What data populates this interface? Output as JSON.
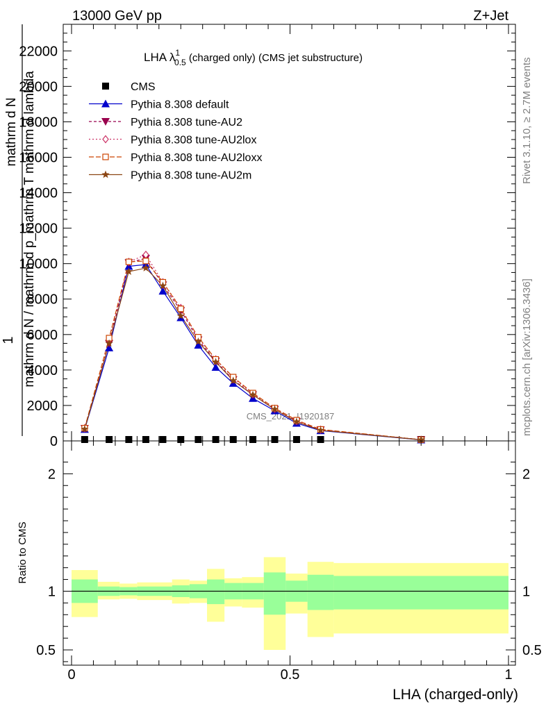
{
  "header": {
    "energy_label": "13000 GeV pp",
    "process_label": "Z+Jet"
  },
  "side_labels": {
    "rivet": "Rivet 3.1.10, ≥ 2.7M events",
    "mcplots": "mcplots.cern.ch [arXiv:1306.3436]"
  },
  "watermark": "CMS_2021_I1920187",
  "chart_data": [
    {
      "type": "line",
      "panel": "main",
      "title": {
        "prefix": "LHA λ",
        "sup": "1",
        "sub": "0.5",
        "suffix": " (charged only) (CMS jet substructure)"
      },
      "ylabel": {
        "lead": "1",
        "numerator": "mathrm d N",
        "denominator": "mathrm d N / mathrm d p_mathrm T mathrm d lambda"
      },
      "xlim": [
        0,
        1
      ],
      "ylim": [
        0,
        23500
      ],
      "yticks": [
        {
          "v": 0,
          "label": "0"
        },
        {
          "v": 2000,
          "label": "2000"
        },
        {
          "v": 4000,
          "label": "4000"
        },
        {
          "v": 6000,
          "label": "6000"
        },
        {
          "v": 8000,
          "label": "8000"
        },
        {
          "v": 10000,
          "label": "10000"
        },
        {
          "v": 12000,
          "label": "12000"
        },
        {
          "v": 14000,
          "label": "14000"
        },
        {
          "v": 16000,
          "label": "16000"
        },
        {
          "v": 18000,
          "label": "18000"
        },
        {
          "v": 20000,
          "label": "20000"
        },
        {
          "v": 22000,
          "label": "22000"
        }
      ],
      "legend_position": "top-left",
      "x": [
        0.03,
        0.086,
        0.131,
        0.17,
        0.209,
        0.25,
        0.29,
        0.33,
        0.37,
        0.415,
        0.465,
        0.515,
        0.57,
        0.8
      ],
      "series": [
        {
          "name": "CMS",
          "color": "#000000",
          "marker": "square",
          "dash": "",
          "line": false,
          "values": [
            0,
            0,
            0,
            0,
            0,
            0,
            0,
            0,
            0,
            0,
            0,
            0,
            0,
            0
          ]
        },
        {
          "name": "Pythia 8.308 default",
          "color": "#0000cc",
          "marker": "triangle-up",
          "dash": "",
          "values": [
            650,
            5250,
            9850,
            9950,
            8450,
            6950,
            5400,
            4150,
            3250,
            2400,
            1700,
            1000,
            580,
            60
          ]
        },
        {
          "name": "Pythia 8.308 tune-AU2",
          "color": "#99004d",
          "marker": "triangle-down",
          "dash": "4,3",
          "values": [
            700,
            5500,
            10050,
            10300,
            8800,
            7350,
            5700,
            4500,
            3450,
            2600,
            1780,
            1100,
            620,
            65
          ]
        },
        {
          "name": "Pythia 8.308 tune-AU2lox",
          "color": "#cc3366",
          "marker": "diamond-open",
          "dash": "2,3",
          "values": [
            720,
            5700,
            10100,
            10500,
            8950,
            7500,
            5800,
            4600,
            3550,
            2650,
            1820,
            1130,
            640,
            66
          ]
        },
        {
          "name": "Pythia 8.308 tune-AU2loxx",
          "color": "#cc4400",
          "marker": "square-open",
          "dash": "7,3",
          "values": [
            720,
            5800,
            10100,
            10150,
            8950,
            7450,
            5850,
            4600,
            3600,
            2700,
            1850,
            1170,
            650,
            68
          ]
        },
        {
          "name": "Pythia 8.308 tune-AU2m",
          "color": "#8b4513",
          "marker": "star",
          "dash": "",
          "values": [
            660,
            5500,
            9550,
            9750,
            8750,
            7050,
            5600,
            4450,
            3400,
            2600,
            1780,
            1080,
            600,
            62
          ]
        }
      ]
    },
    {
      "type": "area",
      "panel": "ratio",
      "ylabel": "Ratio to CMS",
      "xlabel": "LHA (charged-only)",
      "xlim": [
        0,
        1
      ],
      "ylim": [
        0.37,
        2.28
      ],
      "xticks": [
        {
          "v": 0,
          "label": "0"
        },
        {
          "v": 0.5,
          "label": "0.5"
        },
        {
          "v": 1,
          "label": "1"
        }
      ],
      "yticks": [
        {
          "v": 0.5,
          "label": "0.5"
        },
        {
          "v": 1,
          "label": "1"
        },
        {
          "v": 2,
          "label": "2"
        }
      ],
      "reference_line": 1,
      "inner_band_color": "#99ff99",
      "outer_band_color": "#ffff99",
      "bins": [
        {
          "x0": 0.0,
          "x1": 0.06,
          "inner": [
            0.9,
            1.1
          ],
          "outer": [
            0.78,
            1.18
          ]
        },
        {
          "x0": 0.06,
          "x1": 0.11,
          "inner": [
            0.96,
            1.04
          ],
          "outer": [
            0.93,
            1.08
          ]
        },
        {
          "x0": 0.11,
          "x1": 0.15,
          "inner": [
            0.965,
            1.035
          ],
          "outer": [
            0.935,
            1.065
          ]
        },
        {
          "x0": 0.15,
          "x1": 0.19,
          "inner": [
            0.96,
            1.04
          ],
          "outer": [
            0.925,
            1.075
          ]
        },
        {
          "x0": 0.19,
          "x1": 0.23,
          "inner": [
            0.96,
            1.04
          ],
          "outer": [
            0.925,
            1.075
          ]
        },
        {
          "x0": 0.23,
          "x1": 0.27,
          "inner": [
            0.95,
            1.05
          ],
          "outer": [
            0.895,
            1.1
          ]
        },
        {
          "x0": 0.27,
          "x1": 0.31,
          "inner": [
            0.94,
            1.06
          ],
          "outer": [
            0.9,
            1.09
          ]
        },
        {
          "x0": 0.31,
          "x1": 0.35,
          "inner": [
            0.89,
            1.1
          ],
          "outer": [
            0.74,
            1.19
          ]
        },
        {
          "x0": 0.35,
          "x1": 0.39,
          "inner": [
            0.93,
            1.07
          ],
          "outer": [
            0.87,
            1.11
          ]
        },
        {
          "x0": 0.39,
          "x1": 0.44,
          "inner": [
            0.93,
            1.07
          ],
          "outer": [
            0.86,
            1.12
          ]
        },
        {
          "x0": 0.44,
          "x1": 0.49,
          "inner": [
            0.8,
            1.16
          ],
          "outer": [
            0.5,
            1.29
          ]
        },
        {
          "x0": 0.49,
          "x1": 0.54,
          "inner": [
            0.91,
            1.09
          ],
          "outer": [
            0.81,
            1.15
          ]
        },
        {
          "x0": 0.54,
          "x1": 0.6,
          "inner": [
            0.84,
            1.14
          ],
          "outer": [
            0.61,
            1.25
          ]
        },
        {
          "x0": 0.6,
          "x1": 1.0,
          "inner": [
            0.845,
            1.13
          ],
          "outer": [
            0.64,
            1.24
          ]
        }
      ]
    }
  ]
}
